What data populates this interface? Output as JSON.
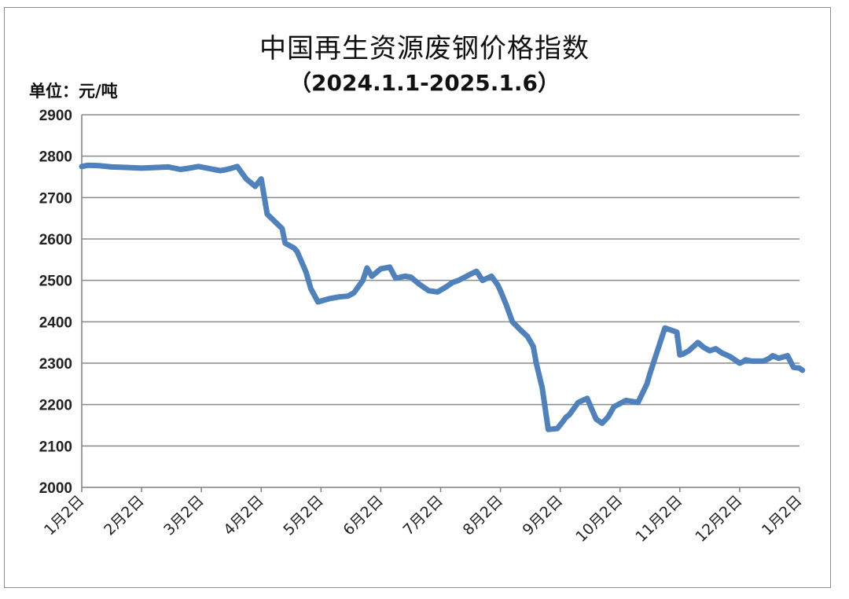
{
  "chart_data": {
    "type": "line",
    "title": "中国再生资源废钢价格指数",
    "subtitle": "（2024.1.1-2025.1.6）",
    "unit_label": "单位：元/吨",
    "ylim": [
      2000,
      2900
    ],
    "y_ticks": [
      "2000",
      "2100",
      "2200",
      "2300",
      "2400",
      "2500",
      "2600",
      "2700",
      "2800",
      "2900"
    ],
    "x_ticks": [
      "1月2日",
      "2月2日",
      "3月2日",
      "4月2日",
      "5月2日",
      "6月2日",
      "7月2日",
      "8月2日",
      "9月2日",
      "10月2日",
      "11月2日",
      "12月2日",
      "1月2日"
    ],
    "grid": true,
    "legend": "none",
    "line_color": "#4f81bd",
    "series": [
      {
        "x": [
          0,
          0.1,
          0.3,
          0.5,
          0.7,
          1.0,
          1.3,
          1.45,
          1.65,
          1.75,
          1.95,
          2.1,
          2.2,
          2.32,
          2.4,
          2.48,
          2.6,
          2.75,
          2.9,
          3.0,
          3.1,
          3.35,
          3.4,
          3.55,
          3.6,
          3.75,
          3.83,
          3.95,
          4.05,
          4.15,
          4.3,
          4.45,
          4.55,
          4.7,
          4.77,
          4.85,
          5.0,
          5.15,
          5.25,
          5.4,
          5.5,
          5.65,
          5.8,
          5.95,
          6.1,
          6.2,
          6.3,
          6.5,
          6.6,
          6.7,
          6.85,
          6.95,
          7.0,
          7.1,
          7.2,
          7.35,
          7.45,
          7.55,
          7.6,
          7.7,
          7.8,
          7.95,
          8.05,
          8.1,
          8.15,
          8.3,
          8.45,
          8.6,
          8.7,
          8.8,
          8.9,
          9.1,
          9.3,
          9.45,
          9.5,
          9.75,
          9.95,
          10.0,
          10.05,
          10.15,
          10.3,
          10.4,
          10.5,
          10.6,
          10.7,
          10.85,
          11.0,
          11.05,
          11.1,
          11.2,
          11.4,
          11.5,
          11.55,
          11.65,
          11.8,
          11.9,
          12.0,
          12.05
        ],
        "values": [
          2775,
          2778,
          2777,
          2774,
          2773,
          2771,
          2773,
          2774,
          2768,
          2770,
          2775,
          2771,
          2768,
          2765,
          2767,
          2770,
          2775,
          2745,
          2727,
          2745,
          2660,
          2625,
          2590,
          2578,
          2570,
          2520,
          2480,
          2448,
          2452,
          2456,
          2460,
          2462,
          2470,
          2500,
          2530,
          2510,
          2528,
          2532,
          2505,
          2510,
          2508,
          2490,
          2475,
          2472,
          2485,
          2495,
          2500,
          2515,
          2522,
          2500,
          2510,
          2490,
          2475,
          2440,
          2400,
          2378,
          2365,
          2340,
          2300,
          2240,
          2140,
          2142,
          2160,
          2170,
          2175,
          2205,
          2215,
          2165,
          2155,
          2170,
          2195,
          2210,
          2205,
          2250,
          2275,
          2385,
          2375,
          2320,
          2322,
          2330,
          2350,
          2338,
          2330,
          2335,
          2325,
          2315,
          2300,
          2303,
          2308,
          2305,
          2305,
          2312,
          2318,
          2312,
          2318,
          2290,
          2288,
          2283
        ]
      }
    ]
  }
}
